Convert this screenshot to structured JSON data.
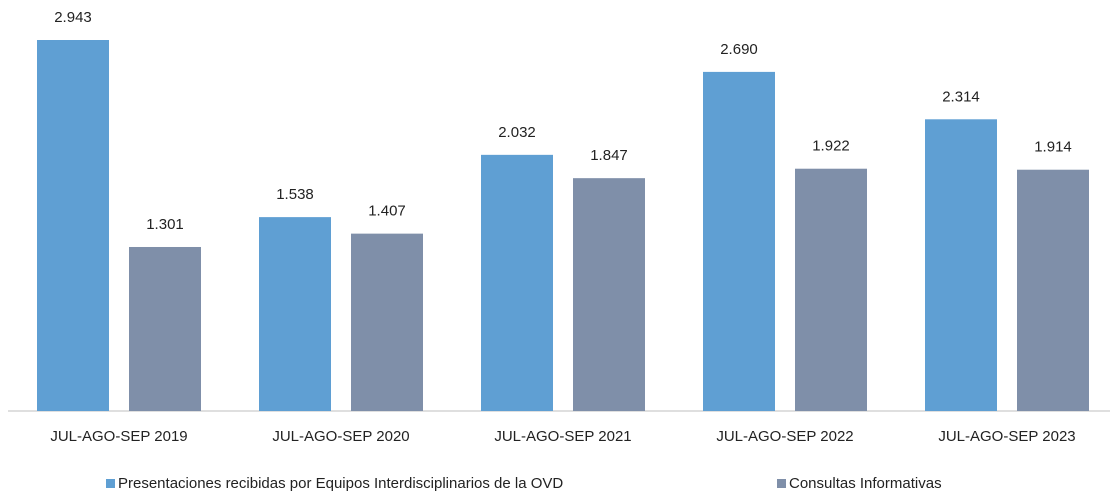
{
  "chart_data": {
    "type": "bar",
    "categories": [
      "JUL-AGO-SEP 2019",
      "JUL-AGO-SEP 2020",
      "JUL-AGO-SEP 2021",
      "JUL-AGO-SEP 2022",
      "JUL-AGO-SEP 2023"
    ],
    "series": [
      {
        "name": "Presentaciones recibidas por Equipos Interdisciplinarios de la OVD",
        "color": "#5f9fd3",
        "values": [
          2943,
          1538,
          2032,
          2690,
          2314
        ],
        "value_labels": [
          "2.943",
          "1.538",
          "2.032",
          "2.690",
          "2.314"
        ]
      },
      {
        "name": "Consultas Informativas",
        "color": "#7f8fa9",
        "values": [
          1301,
          1407,
          1847,
          1922,
          1914
        ],
        "value_labels": [
          "1.301",
          "1.407",
          "1.847",
          "1.922",
          "1.914"
        ]
      }
    ],
    "legend": "bottom"
  }
}
